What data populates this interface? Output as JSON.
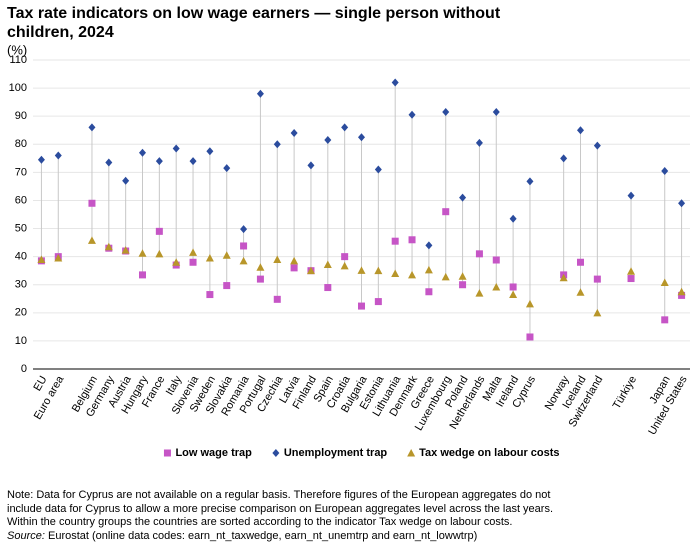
{
  "chart_data": {
    "type": "scatter",
    "title": "Tax rate indicators on low wage earners — single person without children, 2024",
    "y_label": "(%)",
    "categories": [
      "EU",
      "Euro area",
      null,
      "Belgium",
      "Germany",
      "Austria",
      "Hungary",
      "France",
      "Italy",
      "Slovenia",
      "Sweden",
      "Slovakia",
      "Romania",
      "Portugal",
      "Czechia",
      "Latvia",
      "Finland",
      "Spain",
      "Croatia",
      "Bulgaria",
      "Estonia",
      "Lithuania",
      "Denmark",
      "Greece",
      "Luxembourg",
      "Poland",
      "Netherlands",
      "Malta",
      "Ireland",
      "Cyprus",
      null,
      "Norway",
      "Iceland",
      "Switzerland",
      null,
      "Türkiye",
      null,
      "Japan",
      "United States"
    ],
    "series": [
      {
        "name": "Low wage trap",
        "color": "#c655c6",
        "marker": "square",
        "values": [
          38.5,
          40,
          null,
          59,
          43,
          42,
          33.5,
          49,
          37,
          38,
          26.5,
          29.7,
          43.8,
          32,
          24.8,
          36,
          35,
          29,
          40,
          22.4,
          24,
          45.5,
          46,
          27.5,
          56,
          30,
          41,
          38.8,
          29.2,
          11.4,
          null,
          33.5,
          38,
          32,
          null,
          32.2,
          null,
          17.5,
          26.2
        ]
      },
      {
        "name": "Unemployment trap",
        "color": "#2b4c9e",
        "marker": "diamond",
        "values": [
          74.5,
          76,
          null,
          86,
          73.5,
          67,
          77,
          74,
          78.5,
          74,
          77.5,
          71.5,
          49.8,
          98,
          80,
          84,
          72.5,
          81.5,
          86,
          82.5,
          71,
          102,
          90.5,
          44,
          91.5,
          61,
          80.5,
          91.5,
          53.5,
          66.8,
          null,
          75,
          85,
          79.5,
          null,
          61.7,
          null,
          70.5,
          59
        ]
      },
      {
        "name": "Tax wedge on labour costs",
        "color": "#b8962a",
        "marker": "triangle",
        "values": [
          39,
          39.5,
          null,
          45.8,
          43.5,
          42.3,
          41.2,
          41,
          38,
          41.5,
          39.5,
          40.5,
          38.5,
          36.2,
          39,
          38.5,
          35,
          37.2,
          36.7,
          35.1,
          35,
          34,
          33.5,
          35.3,
          32.8,
          33,
          27,
          29.2,
          26.5,
          23.2,
          null,
          32.5,
          27.3,
          20,
          null,
          34.8,
          null,
          30.8,
          27.5
        ]
      }
    ],
    "ylim": [
      0,
      110
    ],
    "yticks": [
      0,
      10,
      20,
      30,
      40,
      50,
      60,
      70,
      80,
      90,
      100,
      110
    ],
    "grid": true,
    "legend": "bottom"
  },
  "notes": [
    "Note: Data for Cyprus are not available on a regular basis. Therefore figures of the European aggregates do not",
    "include data for Cyprus to allow a more precise comparison on European aggregates level across the last years.",
    "Within the country groups the countries are sorted according to the indicator Tax wedge on labour costs."
  ],
  "source": {
    "label": "Source:",
    "text": "Eurostat (online data codes: earn_nt_taxwedge, earn_nt_unemtrp and earn_nt_lowwtrp)"
  }
}
